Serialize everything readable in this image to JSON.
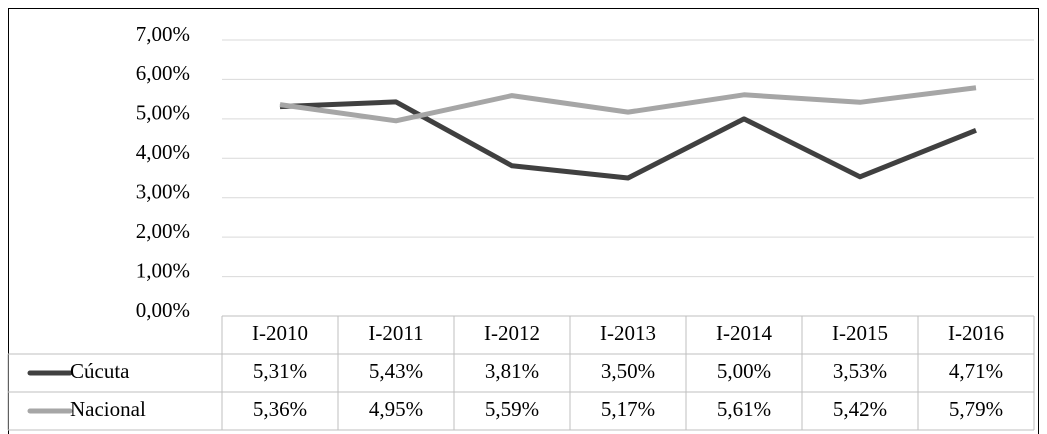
{
  "chart_data": {
    "type": "line",
    "categories": [
      "I-2010",
      "I-2011",
      "I-2012",
      "I-2013",
      "I-2014",
      "I-2015",
      "I-2016"
    ],
    "series": [
      {
        "name": "Cúcuta",
        "color": "#404040",
        "values": [
          5.31,
          5.43,
          3.81,
          3.5,
          5.0,
          3.53,
          4.71
        ],
        "value_labels": [
          "5,31%",
          "5,43%",
          "3,81%",
          "3,50%",
          "5,00%",
          "3,53%",
          "4,71%"
        ]
      },
      {
        "name": "Nacional",
        "color": "#a6a6a6",
        "values": [
          5.36,
          4.95,
          5.59,
          5.17,
          5.61,
          5.42,
          5.79
        ],
        "value_labels": [
          "5,36%",
          "4,95%",
          "5,59%",
          "5,17%",
          "5,61%",
          "5,42%",
          "5,79%"
        ]
      }
    ],
    "ylim": [
      0,
      7
    ],
    "yticks": [
      {
        "value": 0,
        "label": "0,00%"
      },
      {
        "value": 1,
        "label": "1,00%"
      },
      {
        "value": 2,
        "label": "2,00%"
      },
      {
        "value": 3,
        "label": "3,00%"
      },
      {
        "value": 4,
        "label": "4,00%"
      },
      {
        "value": 5,
        "label": "5,00%"
      },
      {
        "value": 6,
        "label": "6,00%"
      },
      {
        "value": 7,
        "label": "7,00%"
      }
    ],
    "grid": true
  }
}
